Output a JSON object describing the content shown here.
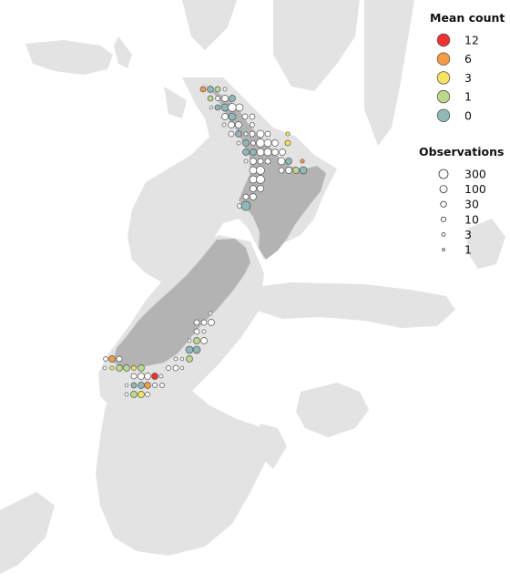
{
  "legend": {
    "mean_count": {
      "title": "Mean count",
      "entries": [
        {
          "label": "12",
          "color": "#f23030"
        },
        {
          "label": "6",
          "color": "#f59a45"
        },
        {
          "label": "3",
          "color": "#f5e55a"
        },
        {
          "label": "1",
          "color": "#bcd98a"
        },
        {
          "label": "0",
          "color": "#8fb8b6"
        }
      ]
    },
    "observations": {
      "title": "Observations",
      "entries": [
        {
          "label": "300",
          "value": 300
        },
        {
          "label": "100",
          "value": 100
        },
        {
          "label": "30",
          "value": 30
        },
        {
          "label": "10",
          "value": 10
        },
        {
          "label": "3",
          "value": 3
        },
        {
          "label": "1",
          "value": 1
        }
      ]
    }
  },
  "colors": {
    "background": "#ffffff",
    "bathymetry": "#e3e3e3",
    "land": "#b3b3b3",
    "empty_circle_fill": "#ffffff",
    "circle_stroke": "#555555"
  }
}
